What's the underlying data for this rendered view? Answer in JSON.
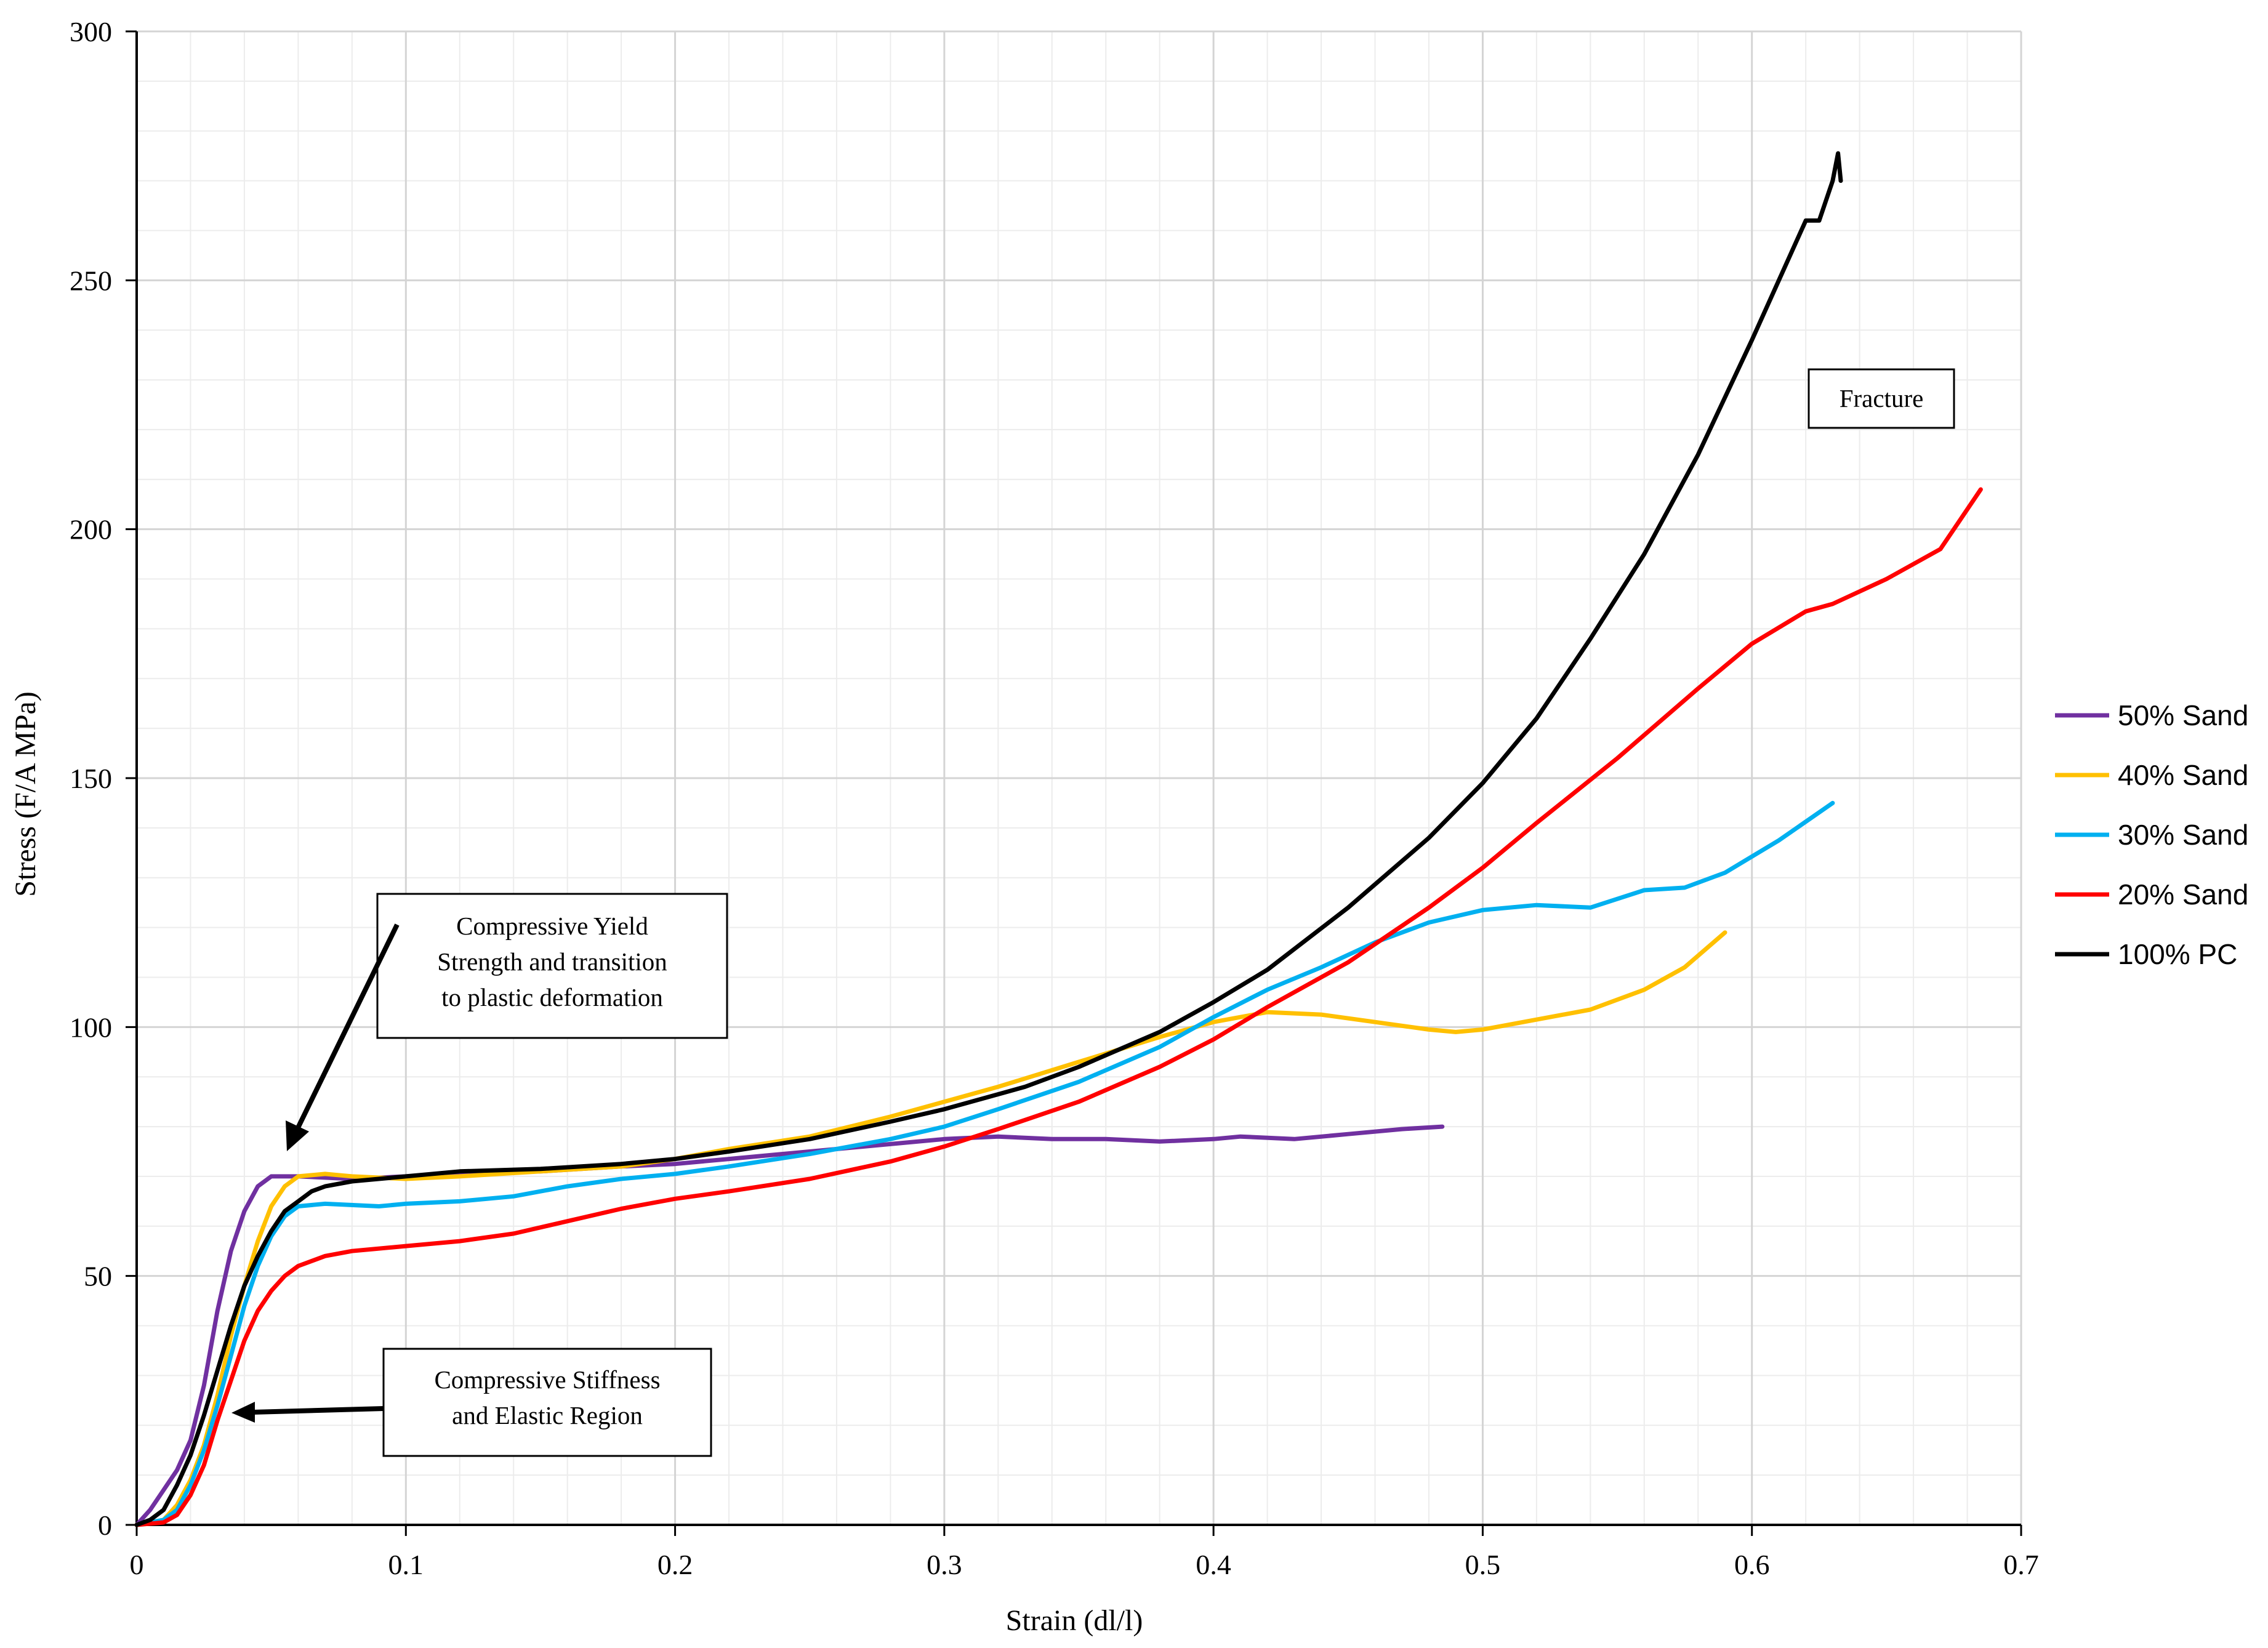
{
  "chart_data": {
    "type": "line",
    "title": "",
    "xlabel": "Strain (dl/l)",
    "ylabel": "Stress (F/A MPa)",
    "xlim": [
      0,
      0.7
    ],
    "ylim": [
      0,
      300
    ],
    "x_ticks": [
      "0",
      "0.1",
      "0.2",
      "0.3",
      "0.4",
      "0.5",
      "0.6",
      "0.7"
    ],
    "y_ticks": [
      "0",
      "50",
      "100",
      "150",
      "200",
      "250",
      "300"
    ],
    "grid": true,
    "legend_position": "right",
    "series": [
      {
        "name": "50% Sand",
        "color": "#7030a0",
        "points": [
          [
            0.0,
            0
          ],
          [
            0.005,
            3
          ],
          [
            0.01,
            7
          ],
          [
            0.015,
            11
          ],
          [
            0.02,
            17
          ],
          [
            0.025,
            28
          ],
          [
            0.03,
            43
          ],
          [
            0.035,
            55
          ],
          [
            0.04,
            63
          ],
          [
            0.045,
            68
          ],
          [
            0.05,
            70
          ],
          [
            0.06,
            70
          ],
          [
            0.08,
            69.5
          ],
          [
            0.1,
            70
          ],
          [
            0.12,
            70.5
          ],
          [
            0.15,
            71
          ],
          [
            0.18,
            72
          ],
          [
            0.2,
            72.5
          ],
          [
            0.22,
            73.5
          ],
          [
            0.25,
            75
          ],
          [
            0.28,
            76.5
          ],
          [
            0.3,
            77.5
          ],
          [
            0.32,
            78
          ],
          [
            0.34,
            77.5
          ],
          [
            0.36,
            77.5
          ],
          [
            0.38,
            77
          ],
          [
            0.4,
            77.5
          ],
          [
            0.41,
            78
          ],
          [
            0.43,
            77.5
          ],
          [
            0.45,
            78.5
          ],
          [
            0.47,
            79.5
          ],
          [
            0.485,
            80
          ]
        ]
      },
      {
        "name": "40% Sand",
        "color": "#ffc000",
        "points": [
          [
            0.0,
            0
          ],
          [
            0.01,
            1
          ],
          [
            0.015,
            4
          ],
          [
            0.02,
            9
          ],
          [
            0.025,
            16
          ],
          [
            0.03,
            26
          ],
          [
            0.035,
            38
          ],
          [
            0.04,
            48
          ],
          [
            0.045,
            57
          ],
          [
            0.05,
            64
          ],
          [
            0.055,
            68
          ],
          [
            0.06,
            70
          ],
          [
            0.07,
            70.5
          ],
          [
            0.08,
            70
          ],
          [
            0.1,
            69.5
          ],
          [
            0.12,
            70
          ],
          [
            0.15,
            71
          ],
          [
            0.18,
            72
          ],
          [
            0.2,
            73.5
          ],
          [
            0.22,
            75.5
          ],
          [
            0.25,
            78
          ],
          [
            0.28,
            82
          ],
          [
            0.3,
            85
          ],
          [
            0.32,
            88
          ],
          [
            0.35,
            93
          ],
          [
            0.38,
            98
          ],
          [
            0.4,
            101
          ],
          [
            0.42,
            103
          ],
          [
            0.44,
            102.5
          ],
          [
            0.46,
            101
          ],
          [
            0.48,
            99.5
          ],
          [
            0.49,
            99
          ],
          [
            0.5,
            99.5
          ],
          [
            0.52,
            101.5
          ],
          [
            0.54,
            103.5
          ],
          [
            0.56,
            107.5
          ],
          [
            0.575,
            112
          ],
          [
            0.59,
            119
          ]
        ]
      },
      {
        "name": "30% Sand",
        "color": "#00b0f0",
        "points": [
          [
            0.0,
            0
          ],
          [
            0.01,
            1
          ],
          [
            0.015,
            3
          ],
          [
            0.02,
            8
          ],
          [
            0.025,
            15
          ],
          [
            0.03,
            24
          ],
          [
            0.035,
            34
          ],
          [
            0.04,
            44
          ],
          [
            0.045,
            52
          ],
          [
            0.05,
            58
          ],
          [
            0.055,
            62
          ],
          [
            0.06,
            64
          ],
          [
            0.07,
            64.5
          ],
          [
            0.09,
            64
          ],
          [
            0.1,
            64.5
          ],
          [
            0.12,
            65
          ],
          [
            0.14,
            66
          ],
          [
            0.16,
            68
          ],
          [
            0.18,
            69.5
          ],
          [
            0.2,
            70.5
          ],
          [
            0.22,
            72
          ],
          [
            0.25,
            74.5
          ],
          [
            0.28,
            77.5
          ],
          [
            0.3,
            80
          ],
          [
            0.32,
            83.5
          ],
          [
            0.35,
            89
          ],
          [
            0.38,
            96
          ],
          [
            0.4,
            102
          ],
          [
            0.42,
            107.5
          ],
          [
            0.44,
            112
          ],
          [
            0.46,
            117
          ],
          [
            0.48,
            121
          ],
          [
            0.5,
            123.5
          ],
          [
            0.52,
            124.5
          ],
          [
            0.54,
            124
          ],
          [
            0.56,
            127.5
          ],
          [
            0.575,
            128
          ],
          [
            0.59,
            131
          ],
          [
            0.61,
            137.5
          ],
          [
            0.63,
            145
          ]
        ]
      },
      {
        "name": "20% Sand",
        "color": "#ff0000",
        "points": [
          [
            0.0,
            0
          ],
          [
            0.01,
            0.5
          ],
          [
            0.015,
            2
          ],
          [
            0.02,
            6
          ],
          [
            0.025,
            12
          ],
          [
            0.03,
            21
          ],
          [
            0.035,
            29
          ],
          [
            0.04,
            37
          ],
          [
            0.045,
            43
          ],
          [
            0.05,
            47
          ],
          [
            0.055,
            50
          ],
          [
            0.06,
            52
          ],
          [
            0.07,
            54
          ],
          [
            0.08,
            55
          ],
          [
            0.1,
            56
          ],
          [
            0.12,
            57
          ],
          [
            0.14,
            58.5
          ],
          [
            0.16,
            61
          ],
          [
            0.18,
            63.5
          ],
          [
            0.2,
            65.5
          ],
          [
            0.22,
            67
          ],
          [
            0.25,
            69.5
          ],
          [
            0.28,
            73
          ],
          [
            0.3,
            76
          ],
          [
            0.32,
            79.5
          ],
          [
            0.35,
            85
          ],
          [
            0.38,
            92
          ],
          [
            0.4,
            97.5
          ],
          [
            0.42,
            104
          ],
          [
            0.45,
            113
          ],
          [
            0.48,
            124
          ],
          [
            0.5,
            132
          ],
          [
            0.52,
            141
          ],
          [
            0.55,
            154
          ],
          [
            0.58,
            168
          ],
          [
            0.6,
            177
          ],
          [
            0.62,
            183.5
          ],
          [
            0.63,
            185
          ],
          [
            0.65,
            190
          ],
          [
            0.67,
            196
          ],
          [
            0.685,
            208
          ]
        ]
      },
      {
        "name": "100% PC",
        "color": "#000000",
        "points": [
          [
            0.0,
            0
          ],
          [
            0.005,
            1
          ],
          [
            0.01,
            3
          ],
          [
            0.015,
            8
          ],
          [
            0.02,
            14
          ],
          [
            0.025,
            22
          ],
          [
            0.03,
            31
          ],
          [
            0.035,
            40
          ],
          [
            0.04,
            48
          ],
          [
            0.045,
            54
          ],
          [
            0.05,
            59
          ],
          [
            0.055,
            63
          ],
          [
            0.06,
            65
          ],
          [
            0.065,
            67
          ],
          [
            0.07,
            68
          ],
          [
            0.08,
            69
          ],
          [
            0.1,
            70
          ],
          [
            0.12,
            71
          ],
          [
            0.15,
            71.5
          ],
          [
            0.18,
            72.5
          ],
          [
            0.2,
            73.5
          ],
          [
            0.22,
            75
          ],
          [
            0.25,
            77.5
          ],
          [
            0.28,
            81
          ],
          [
            0.3,
            83.5
          ],
          [
            0.33,
            88
          ],
          [
            0.35,
            92
          ],
          [
            0.38,
            99
          ],
          [
            0.4,
            105
          ],
          [
            0.42,
            111.5
          ],
          [
            0.45,
            124
          ],
          [
            0.48,
            138
          ],
          [
            0.5,
            149
          ],
          [
            0.52,
            162
          ],
          [
            0.54,
            178
          ],
          [
            0.56,
            195
          ],
          [
            0.58,
            215
          ],
          [
            0.6,
            238
          ],
          [
            0.62,
            262
          ],
          [
            0.625,
            262
          ],
          [
            0.63,
            270
          ],
          [
            0.632,
            275.5
          ],
          [
            0.633,
            270
          ]
        ]
      }
    ],
    "annotations": [
      {
        "id": "yield",
        "lines": [
          "Compressive Yield",
          "Strength and transition",
          "to plastic deformation"
        ]
      },
      {
        "id": "stiffness",
        "lines": [
          "Compressive Stiffness",
          "and Elastic Region"
        ]
      },
      {
        "id": "fracture",
        "lines": [
          "Fracture"
        ]
      }
    ]
  }
}
